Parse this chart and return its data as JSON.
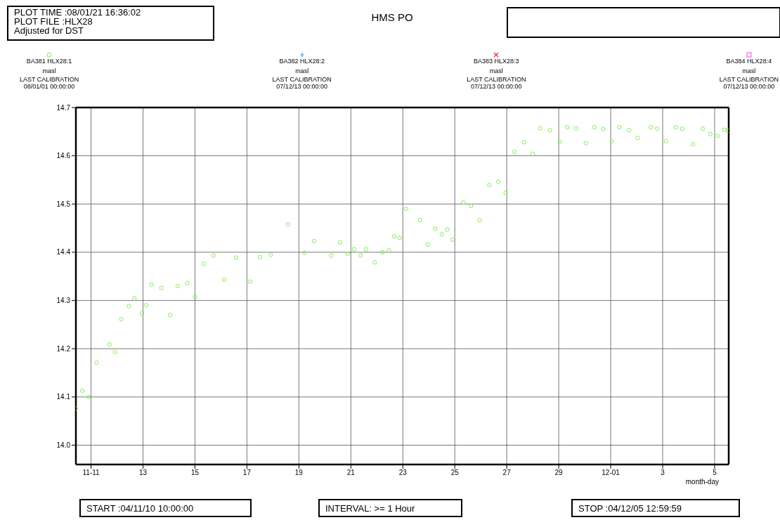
{
  "chart_data": {
    "type": "scatter",
    "title": "HMS PO",
    "xlabel": "month-day",
    "annotations": [
      "PLOT TIME :08/01/21 16:36:02",
      "PLOT FILE :HLX28",
      "Adjusted for DST",
      "masl",
      "LAST CALIBRATION",
      "08/01/01 00:00:00",
      "masl",
      "LAST CALIBRATION",
      "07/12/13 00:00:00",
      "masl",
      "LAST CALIBRATION",
      "07/12/13 00:00:00",
      "masl",
      "LAST CALIBRATION",
      "07/12/13 00:00:00",
      "START :04/11/10 10:00:00",
      "INTERVAL: >= 1 Hour",
      "STOP :04/12/05 12:59:59"
    ],
    "x": [
      "--11-10T10:00",
      "--11-10T16:00",
      "--11-10T22:00",
      "--11-11T05:00",
      "--11-11T17:00",
      "--11-11T22:00",
      "--11-12T04:00",
      "--11-12T11:00",
      "--11-12T16:00",
      "--11-12T23:00",
      "--11-13T03:00",
      "--11-13T08:00",
      "--11-13T17:00",
      "--11-14T01:00",
      "--11-14T08:00",
      "--11-14T17:00",
      "--11-15T00:00",
      "--11-15T08:00",
      "--11-15T17:00",
      "--11-16T03:00",
      "--11-16T14:00",
      "--11-17T03:00",
      "--11-17T12:00",
      "--11-17T22:00",
      "--11-18T14:00",
      "--11-19T05:00",
      "--11-19T14:00",
      "--11-20T06:00",
      "--11-20T14:00",
      "--11-20T21:00",
      "--11-21T03:00",
      "--11-21T09:00",
      "--11-21T14:00",
      "--11-21T22:00",
      "--11-22T05:00",
      "--11-22T11:00",
      "--11-22T16:00",
      "--11-22T21:00",
      "--11-23T03:00",
      "--11-23T16:00",
      "--11-23T23:00",
      "--11-24T06:00",
      "--11-24T12:00",
      "--11-24T17:00",
      "--11-24T22:00",
      "--11-25T08:00",
      "--11-25T15:00",
      "--11-25T23:00",
      "--11-26T08:00",
      "--11-26T16:00",
      "--11-26T23:00",
      "--11-27T07:00",
      "--11-27T16:00",
      "--11-28T00:00",
      "--11-28T07:00",
      "--11-28T16:00",
      "--11-29T01:00",
      "--11-29T08:00",
      "--11-29T16:00",
      "--11-30T01:00",
      "--11-30T09:00",
      "--11-30T17:00",
      "--12-01T01:00",
      "--12-01T08:00",
      "--12-01T17:00",
      "--12-02T01:00",
      "--12-02T13:00",
      "--12-02T19:00",
      "--12-03T03:00",
      "--12-03T12:00",
      "--12-03T18:00",
      "--12-04T04:00",
      "--12-04T13:00",
      "--12-04T20:00",
      "--12-05T03:00",
      "--12-05T09:00",
      "--12-05T12:00"
    ],
    "series": [
      {
        "name": "BA381 HLX28:1",
        "color": "#80f050",
        "marker": "circle",
        "values": [
          14.076,
          14.113,
          14.1,
          14.171,
          14.209,
          14.193,
          14.261,
          14.288,
          14.304,
          14.273,
          14.29,
          14.333,
          14.326,
          14.27,
          14.33,
          14.336,
          14.307,
          14.376,
          14.393,
          14.343,
          14.389,
          14.339,
          14.39,
          14.395,
          14.458,
          14.399,
          14.423,
          14.393,
          14.42,
          14.397,
          14.406,
          14.393,
          14.406,
          14.379,
          14.4,
          14.404,
          14.433,
          14.43,
          14.49,
          14.467,
          14.416,
          14.449,
          14.437,
          14.447,
          14.426,
          14.503,
          14.496,
          14.466,
          14.539,
          14.546,
          14.523,
          14.608,
          14.628,
          14.604,
          14.657,
          14.653,
          14.629,
          14.659,
          14.657,
          14.626,
          14.659,
          14.656,
          14.63,
          14.659,
          14.653,
          14.637,
          14.659,
          14.656,
          14.63,
          14.659,
          14.656,
          14.624,
          14.656,
          14.645,
          14.641,
          14.654,
          14.652
        ]
      },
      {
        "name": "BA382 HLX28:2",
        "color": "#40a0ff",
        "marker": "cross",
        "values": [
          null,
          null,
          null,
          null,
          null,
          null,
          null,
          null,
          null,
          null,
          null,
          null,
          null,
          null,
          null,
          null,
          null,
          null,
          null,
          null,
          null,
          null,
          null,
          null,
          null,
          null,
          null,
          null,
          null,
          null,
          null,
          null,
          null,
          null,
          null,
          null,
          null,
          null,
          null,
          null,
          null,
          null,
          null,
          null,
          null,
          null,
          null,
          null,
          null,
          null,
          null,
          null,
          null,
          null,
          null,
          null,
          null,
          null,
          null,
          null,
          null,
          null,
          null,
          null,
          null,
          null,
          null,
          null,
          null,
          null,
          null,
          null,
          null,
          null,
          null,
          null,
          null
        ]
      },
      {
        "name": "BA383 HLX28:3",
        "color": "#ff2020",
        "marker": "x",
        "values": [
          null,
          null,
          null,
          null,
          null,
          null,
          null,
          null,
          null,
          null,
          null,
          null,
          null,
          null,
          null,
          null,
          null,
          null,
          null,
          null,
          null,
          null,
          null,
          null,
          null,
          null,
          null,
          null,
          null,
          null,
          null,
          null,
          null,
          null,
          null,
          null,
          null,
          null,
          null,
          null,
          null,
          null,
          null,
          null,
          null,
          null,
          null,
          null,
          null,
          null,
          null,
          null,
          null,
          null,
          null,
          null,
          null,
          null,
          null,
          null,
          null,
          null,
          null,
          null,
          null,
          null,
          null,
          null,
          null,
          null,
          null,
          null,
          null,
          null,
          null,
          null,
          null
        ]
      },
      {
        "name": "BA384 HLX28:4",
        "color": "#ff40ff",
        "marker": "square",
        "values": [
          null,
          null,
          null,
          null,
          null,
          null,
          null,
          null,
          null,
          null,
          null,
          null,
          null,
          null,
          null,
          null,
          null,
          null,
          null,
          null,
          null,
          null,
          null,
          null,
          null,
          null,
          null,
          null,
          null,
          null,
          null,
          null,
          null,
          null,
          null,
          null,
          null,
          null,
          null,
          null,
          null,
          null,
          null,
          null,
          null,
          null,
          null,
          null,
          null,
          null,
          null,
          null,
          null,
          null,
          null,
          null,
          null,
          null,
          null,
          null,
          null,
          null,
          null,
          null,
          null,
          null,
          null,
          null,
          null,
          null,
          null,
          null,
          null,
          null,
          null,
          null,
          null
        ]
      }
    ],
    "xlim": [
      "--11-10T10:00",
      "--12-05T13:00"
    ],
    "xticks": [
      {
        "value": "--11-11",
        "label": "11-11"
      },
      {
        "value": "--11-13",
        "label": "13"
      },
      {
        "value": "--11-15",
        "label": "15"
      },
      {
        "value": "--11-17",
        "label": "17"
      },
      {
        "value": "--11-19",
        "label": "19"
      },
      {
        "value": "--11-21",
        "label": "21"
      },
      {
        "value": "--11-23",
        "label": "23"
      },
      {
        "value": "--11-25",
        "label": "25"
      },
      {
        "value": "--11-27",
        "label": "27"
      },
      {
        "value": "--11-29",
        "label": "29"
      },
      {
        "value": "--12-01",
        "label": "12-01"
      },
      {
        "value": "--12-03",
        "label": "3"
      },
      {
        "value": "--12-05",
        "label": "5"
      }
    ],
    "ylim": [
      13.96,
      14.7
    ],
    "yticks": [
      {
        "value": 14,
        "label": "14.0"
      },
      14.1,
      14.2,
      14.3,
      14.4,
      14.5,
      14.6,
      14.7
    ],
    "grid": true,
    "legend": "top"
  }
}
